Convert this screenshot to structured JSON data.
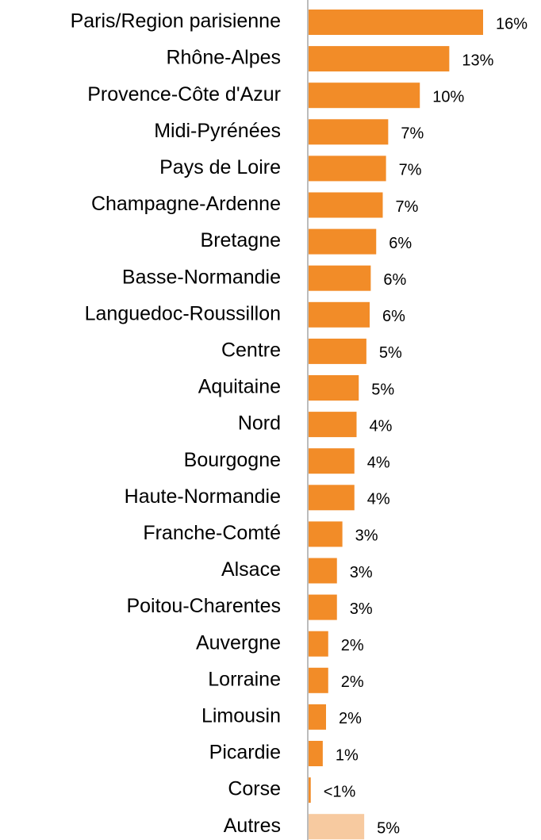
{
  "chart_data": {
    "type": "hbar",
    "categories": [
      "Paris/Region parisienne",
      "Rhône-Alpes",
      "Provence-Côte d'Azur",
      "Midi-Pyrénées",
      "Pays de Loire",
      "Champagne-Ardenne",
      "Bretagne",
      "Basse-Normandie",
      "Languedoc-Roussillon",
      "Centre",
      "Aquitaine",
      "Nord",
      "Bourgogne",
      "Haute-Normandie",
      "Franche-Comté",
      "Alsace",
      "Poitou-Charentes",
      "Auvergne",
      "Lorraine",
      "Limousin",
      "Picardie",
      "Corse",
      "Autres"
    ],
    "values": [
      16.0,
      12.9,
      10.2,
      7.3,
      7.1,
      6.8,
      6.2,
      5.7,
      5.6,
      5.3,
      4.6,
      4.4,
      4.2,
      4.2,
      3.1,
      2.6,
      2.6,
      1.8,
      1.8,
      1.6,
      1.3,
      0.2,
      5.1
    ],
    "value_labels": [
      "16%",
      "13%",
      "10%",
      "7%",
      "7%",
      "7%",
      "6%",
      "6%",
      "6%",
      "5%",
      "5%",
      "4%",
      "4%",
      "4%",
      "3%",
      "3%",
      "3%",
      "2%",
      "2%",
      "2%",
      "1%",
      "<1%",
      "5%"
    ],
    "colors": [
      "#f28c28",
      "#f28c28",
      "#f28c28",
      "#f28c28",
      "#f28c28",
      "#f28c28",
      "#f28c28",
      "#f28c28",
      "#f28c28",
      "#f28c28",
      "#f28c28",
      "#f28c28",
      "#f28c28",
      "#f28c28",
      "#f28c28",
      "#f28c28",
      "#f28c28",
      "#f28c28",
      "#f28c28",
      "#f28c28",
      "#f28c28",
      "#f28c28",
      "#f7caa0"
    ],
    "xlim": [
      0,
      20
    ]
  }
}
